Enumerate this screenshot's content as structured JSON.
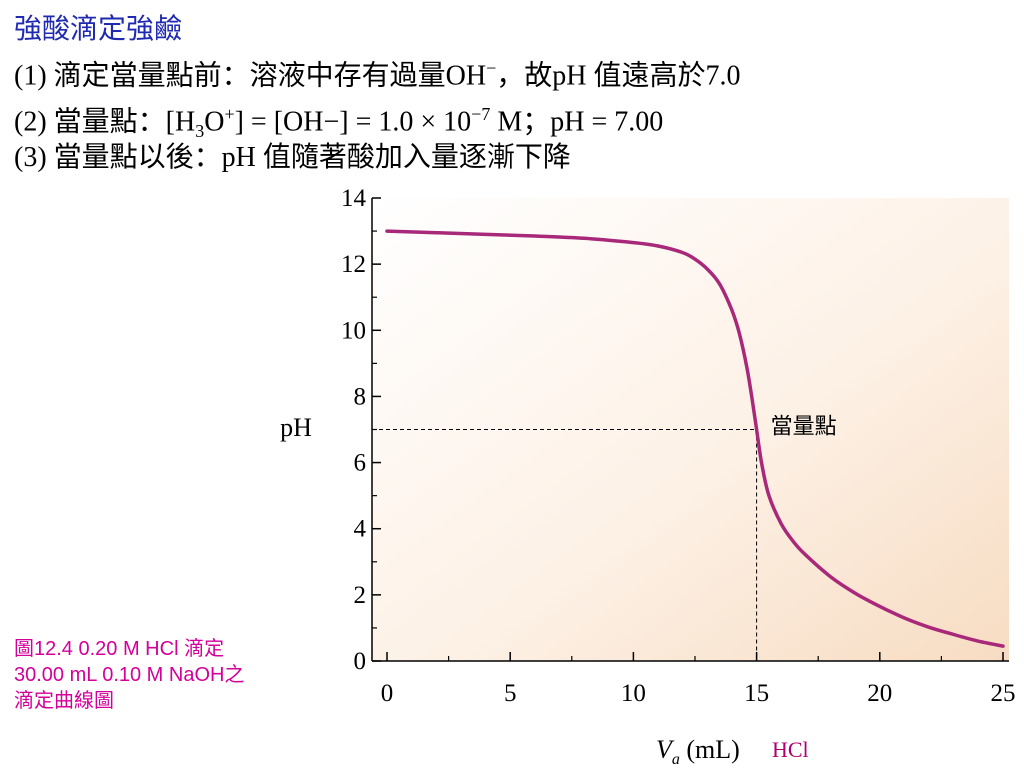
{
  "slide": {
    "heading": "強酸滴定強鹼",
    "heading_color": "#1f2ab0",
    "line1": {
      "prefix": "(1) 滴定當量點前：溶液中存有過量OH",
      "minus": "−",
      "suffix": "，故pH 值遠高於7.0"
    },
    "line2": {
      "a": "(2) 當量點：[H",
      "sub3": "3",
      "b": "O",
      "plus": "+",
      "c": "] = [OH−] = 1.0 × 10",
      "exp": "−7",
      "d": " M；pH = 7.00"
    },
    "line3": "(3) 當量點以後：pH 值隨著酸加入量逐漸下降",
    "caption_lines": [
      "圖12.4  0.20 M HCl 滴定",
      "30.00 mL 0.10 M NaOH之",
      "滴定曲線圖"
    ],
    "caption_color": "#d4009a"
  },
  "chart_data": {
    "type": "line",
    "xlabel_var": "V",
    "xlabel_sub": "a",
    "xlabel_unit": " (mL)",
    "xlabel_reagent": "HCl",
    "xlabel_reagent_color": "#b0006e",
    "ylabel": "pH",
    "xlim": [
      0,
      25
    ],
    "ylim": [
      0,
      14
    ],
    "x_ticks": [
      0,
      5,
      10,
      15,
      20,
      25
    ],
    "y_ticks": [
      0,
      2,
      4,
      6,
      8,
      10,
      12,
      14
    ],
    "grid": false,
    "line_color": "#a8287a",
    "equivalence_point": {
      "x": 15,
      "y": 7,
      "label": "當量點"
    },
    "series": [
      {
        "x": [
          0,
          2,
          4,
          6,
          8,
          10,
          11,
          12,
          12.5,
          13,
          13.5,
          14,
          14.3,
          14.6,
          14.8,
          15,
          15.2,
          15.5,
          16,
          16.5,
          17,
          18,
          19,
          20,
          21,
          22,
          23,
          24,
          25
        ],
        "y": [
          13.0,
          12.95,
          12.9,
          12.85,
          12.78,
          12.65,
          12.55,
          12.35,
          12.15,
          11.85,
          11.4,
          10.6,
          9.9,
          8.9,
          8.0,
          7.0,
          6.0,
          5.0,
          4.15,
          3.6,
          3.2,
          2.55,
          2.05,
          1.65,
          1.3,
          1.02,
          0.8,
          0.6,
          0.45
        ]
      }
    ]
  }
}
